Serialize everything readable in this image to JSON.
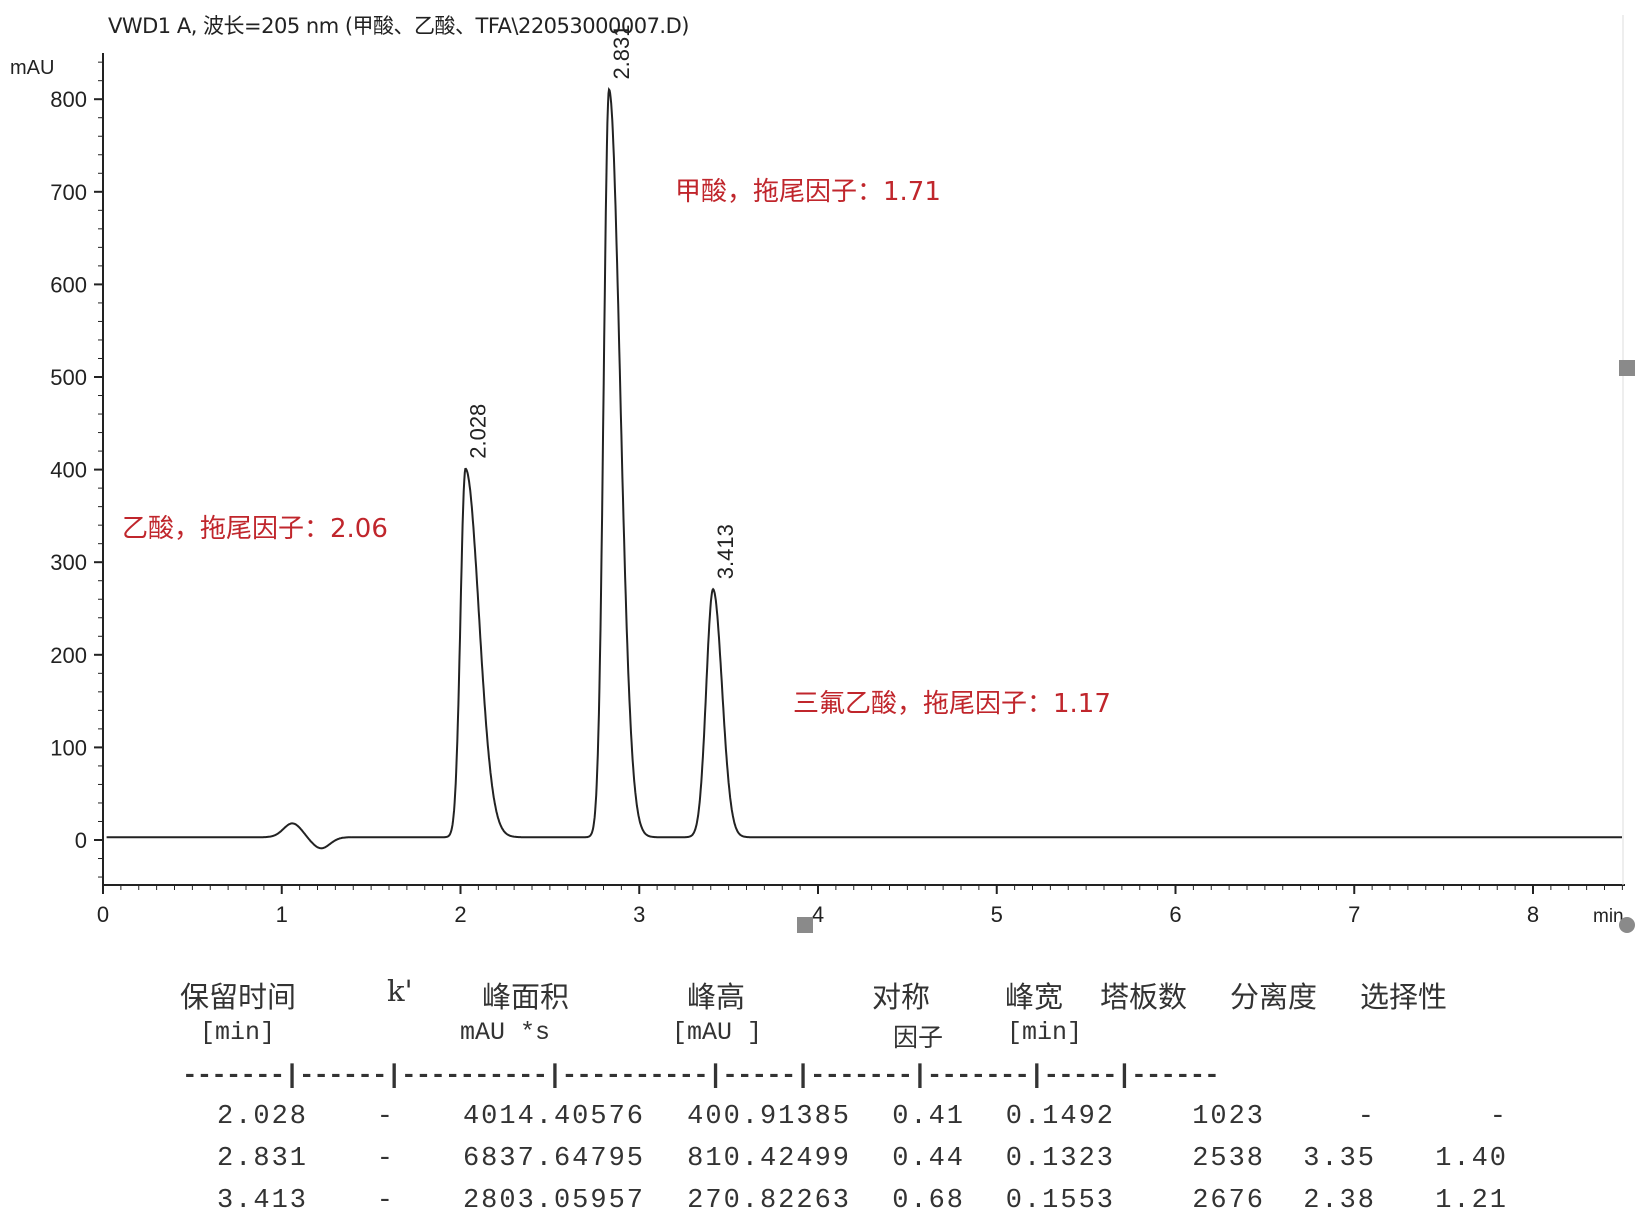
{
  "chart_data": {
    "type": "line",
    "title": "VWD1 A, 波长=205 nm (甲酸、乙酸、TFA\\22053000007.D)",
    "xlabel": "min",
    "ylabel": "mAU",
    "xlim": [
      0,
      8.5
    ],
    "ylim": [
      -50,
      850
    ],
    "x_ticks": [
      "0",
      "1",
      "2",
      "3",
      "4",
      "5",
      "6",
      "7",
      "8"
    ],
    "y_ticks": [
      "0",
      "100",
      "200",
      "300",
      "400",
      "500",
      "600",
      "700",
      "800"
    ],
    "grid": false,
    "line_color": "#222222",
    "annotation_color": "#c0262c",
    "baseline": 3,
    "peaks": [
      {
        "rt": 2.028,
        "label": "2.028",
        "height": 400.91
      },
      {
        "rt": 2.831,
        "label": "2.831",
        "height": 810.42
      },
      {
        "rt": 3.413,
        "label": "3.413",
        "height": 270.82
      }
    ],
    "baseline_disturbance": [
      {
        "x": 1.06,
        "y": 15
      },
      {
        "x": 1.22,
        "y": -12
      }
    ],
    "annotations": [
      "乙酸，拖尾因子：2.06",
      "甲酸，拖尾因子：1.71",
      "三氟乙酸，拖尾因子：1.17"
    ]
  },
  "table": {
    "headers": [
      "保留时间",
      "k'",
      "峰面积",
      "峰高",
      "对称",
      "峰宽",
      "塔板数",
      "分离度",
      "选择性"
    ],
    "units": [
      "[min]",
      "mAU    *s",
      "[mAU    ]",
      "因子",
      "[min]"
    ],
    "separator": "-------|------|----------|----------|-----|-------|-------|-----|------",
    "rows": [
      [
        "2.028",
        "-",
        "4014.40576",
        "400.91385",
        "0.41",
        "0.1492",
        "1023",
        "-",
        "-"
      ],
      [
        "2.831",
        "-",
        "6837.64795",
        "810.42499",
        "0.44",
        "0.1323",
        "2538",
        "3.35",
        "1.40"
      ],
      [
        "3.413",
        "-",
        "2803.05957",
        "270.82263",
        "0.68",
        "0.1553",
        "2676",
        "2.38",
        "1.21"
      ]
    ]
  }
}
